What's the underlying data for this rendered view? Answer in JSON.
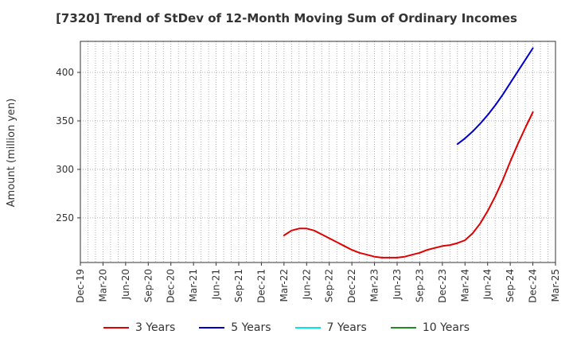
{
  "chart_data": {
    "type": "line",
    "title": "[7320]  Trend of StDev of 12-Month Moving Sum of Ordinary Incomes",
    "xlabel": "",
    "ylabel": "Amount (million yen)",
    "x_ticks": [
      "Dec-19",
      "Mar-20",
      "Jun-20",
      "Sep-20",
      "Dec-20",
      "Mar-21",
      "Jun-21",
      "Sep-21",
      "Dec-21",
      "Mar-22",
      "Jun-22",
      "Sep-22",
      "Dec-22",
      "Mar-23",
      "Jun-23",
      "Sep-23",
      "Dec-23",
      "Mar-24",
      "Jun-24",
      "Sep-24",
      "Dec-24",
      "Mar-25"
    ],
    "y_ticks": [
      250,
      300,
      350,
      400
    ],
    "ylim": [
      204,
      432
    ],
    "grid": true,
    "legend_position": "bottom",
    "series": [
      {
        "name": "3 Years",
        "color": "#e00000",
        "points": [
          [
            "Mar-22",
            232
          ],
          [
            "Apr-22",
            237
          ],
          [
            "May-22",
            239
          ],
          [
            "Jun-22",
            239
          ],
          [
            "Jul-22",
            237
          ],
          [
            "Aug-22",
            233
          ],
          [
            "Sep-22",
            229
          ],
          [
            "Oct-22",
            225
          ],
          [
            "Nov-22",
            221
          ],
          [
            "Dec-22",
            217
          ],
          [
            "Jan-23",
            214
          ],
          [
            "Feb-23",
            212
          ],
          [
            "Mar-23",
            210
          ],
          [
            "Apr-23",
            209
          ],
          [
            "May-23",
            209
          ],
          [
            "Jun-23",
            209
          ],
          [
            "Jul-23",
            210
          ],
          [
            "Aug-23",
            212
          ],
          [
            "Sep-23",
            214
          ],
          [
            "Oct-23",
            217
          ],
          [
            "Nov-23",
            219
          ],
          [
            "Dec-23",
            221
          ],
          [
            "Jan-24",
            222
          ],
          [
            "Feb-24",
            224
          ],
          [
            "Mar-24",
            227
          ],
          [
            "Apr-24",
            234
          ],
          [
            "May-24",
            244
          ],
          [
            "Jun-24",
            257
          ],
          [
            "Jul-24",
            272
          ],
          [
            "Aug-24",
            289
          ],
          [
            "Sep-24",
            308
          ],
          [
            "Oct-24",
            326
          ],
          [
            "Nov-24",
            343
          ],
          [
            "Dec-24",
            359
          ]
        ]
      },
      {
        "name": "5 Years",
        "color": "#0000cc",
        "points": [
          [
            "Feb-24",
            326
          ],
          [
            "Mar-24",
            332
          ],
          [
            "Apr-24",
            339
          ],
          [
            "May-24",
            347
          ],
          [
            "Jun-24",
            356
          ],
          [
            "Jul-24",
            366
          ],
          [
            "Aug-24",
            377
          ],
          [
            "Sep-24",
            389
          ],
          [
            "Oct-24",
            401
          ],
          [
            "Nov-24",
            413
          ],
          [
            "Dec-24",
            425
          ]
        ]
      },
      {
        "name": "7 Years",
        "color": "#00e5ee",
        "points": []
      },
      {
        "name": "10 Years",
        "color": "#228b22",
        "points": []
      }
    ]
  }
}
